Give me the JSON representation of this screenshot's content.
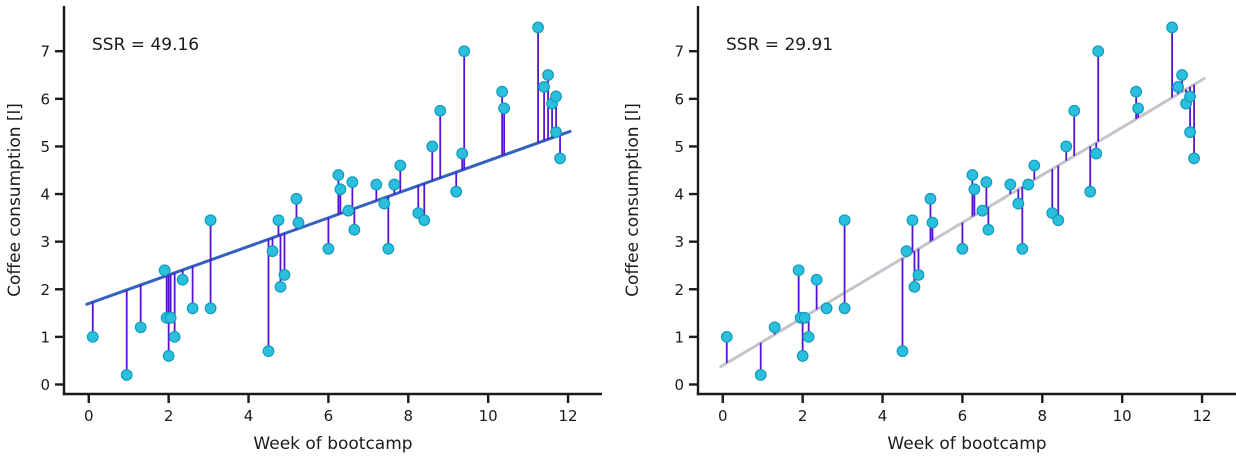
{
  "page": {
    "background": "#ffffff"
  },
  "chart_data": [
    {
      "type": "scatter",
      "annotation": "SSR = 49.16",
      "xlabel": "Week of bootcamp",
      "ylabel": "Coffee consumption [l]",
      "x_ticks": [
        0,
        2,
        4,
        6,
        8,
        10,
        12
      ],
      "y_ticks": [
        0,
        1,
        2,
        3,
        4,
        5,
        6,
        7
      ],
      "xlim": [
        -0.62,
        12.85
      ],
      "ylim": [
        -0.2,
        7.95
      ],
      "grid": false,
      "legend": "none",
      "fit_line": {
        "slope": 0.3,
        "intercept": 1.7,
        "x_start": -0.05,
        "x_end": 12.05,
        "color": "#3461c1"
      },
      "residual_color": "#5912d4",
      "point_fill": "#29bfdd",
      "point_edge": "#139cbc",
      "axis_color": "#1a1a1a",
      "points": [
        [
          0.1,
          1.0
        ],
        [
          0.95,
          0.2
        ],
        [
          1.3,
          1.2
        ],
        [
          1.9,
          2.4
        ],
        [
          1.95,
          1.4
        ],
        [
          2.0,
          0.6
        ],
        [
          2.05,
          1.4
        ],
        [
          2.15,
          1.0
        ],
        [
          2.35,
          2.2
        ],
        [
          2.6,
          1.6
        ],
        [
          3.05,
          1.6
        ],
        [
          3.05,
          3.45
        ],
        [
          4.5,
          0.7
        ],
        [
          4.6,
          2.8
        ],
        [
          4.75,
          3.45
        ],
        [
          4.8,
          2.05
        ],
        [
          4.9,
          2.3
        ],
        [
          5.2,
          3.9
        ],
        [
          5.25,
          3.4
        ],
        [
          6.0,
          2.85
        ],
        [
          6.25,
          4.4
        ],
        [
          6.3,
          4.1
        ],
        [
          6.5,
          3.65
        ],
        [
          6.6,
          4.25
        ],
        [
          6.65,
          3.25
        ],
        [
          7.2,
          4.2
        ],
        [
          7.4,
          3.8
        ],
        [
          7.5,
          2.85
        ],
        [
          7.65,
          4.2
        ],
        [
          7.8,
          4.6
        ],
        [
          8.25,
          3.6
        ],
        [
          8.4,
          3.45
        ],
        [
          8.6,
          5.0
        ],
        [
          8.8,
          5.75
        ],
        [
          9.2,
          4.05
        ],
        [
          9.35,
          4.85
        ],
        [
          9.4,
          7.0
        ],
        [
          10.35,
          6.15
        ],
        [
          10.4,
          5.8
        ],
        [
          11.25,
          7.5
        ],
        [
          11.4,
          6.25
        ],
        [
          11.5,
          6.5
        ],
        [
          11.6,
          5.9
        ],
        [
          11.7,
          6.05
        ],
        [
          11.7,
          5.3
        ],
        [
          11.8,
          4.75
        ]
      ]
    },
    {
      "type": "scatter",
      "annotation": "SSR = 29.91",
      "xlabel": "Week of bootcamp",
      "ylabel": "Coffee consumption [l]",
      "x_ticks": [
        0,
        2,
        4,
        6,
        8,
        10,
        12
      ],
      "y_ticks": [
        0,
        1,
        2,
        3,
        4,
        5,
        6,
        7
      ],
      "xlim": [
        -0.62,
        12.85
      ],
      "ylim": [
        -0.2,
        7.95
      ],
      "grid": false,
      "legend": "none",
      "fit_line": {
        "slope": 0.5,
        "intercept": 0.4,
        "x_start": -0.05,
        "x_end": 12.05,
        "color": "#c2c6cb"
      },
      "residual_color": "#5912d4",
      "point_fill": "#29bfdd",
      "point_edge": "#139cbc",
      "axis_color": "#1a1a1a",
      "points": [
        [
          0.1,
          1.0
        ],
        [
          0.95,
          0.2
        ],
        [
          1.3,
          1.2
        ],
        [
          1.9,
          2.4
        ],
        [
          1.95,
          1.4
        ],
        [
          2.0,
          0.6
        ],
        [
          2.05,
          1.4
        ],
        [
          2.15,
          1.0
        ],
        [
          2.35,
          2.2
        ],
        [
          2.6,
          1.6
        ],
        [
          3.05,
          1.6
        ],
        [
          3.05,
          3.45
        ],
        [
          4.5,
          0.7
        ],
        [
          4.6,
          2.8
        ],
        [
          4.75,
          3.45
        ],
        [
          4.8,
          2.05
        ],
        [
          4.9,
          2.3
        ],
        [
          5.2,
          3.9
        ],
        [
          5.25,
          3.4
        ],
        [
          6.0,
          2.85
        ],
        [
          6.25,
          4.4
        ],
        [
          6.3,
          4.1
        ],
        [
          6.5,
          3.65
        ],
        [
          6.6,
          4.25
        ],
        [
          6.65,
          3.25
        ],
        [
          7.2,
          4.2
        ],
        [
          7.4,
          3.8
        ],
        [
          7.5,
          2.85
        ],
        [
          7.65,
          4.2
        ],
        [
          7.8,
          4.6
        ],
        [
          8.25,
          3.6
        ],
        [
          8.4,
          3.45
        ],
        [
          8.6,
          5.0
        ],
        [
          8.8,
          5.75
        ],
        [
          9.2,
          4.05
        ],
        [
          9.35,
          4.85
        ],
        [
          9.4,
          7.0
        ],
        [
          10.35,
          6.15
        ],
        [
          10.4,
          5.8
        ],
        [
          11.25,
          7.5
        ],
        [
          11.4,
          6.25
        ],
        [
          11.5,
          6.5
        ],
        [
          11.6,
          5.9
        ],
        [
          11.7,
          6.05
        ],
        [
          11.7,
          5.3
        ],
        [
          11.8,
          4.75
        ]
      ]
    }
  ]
}
